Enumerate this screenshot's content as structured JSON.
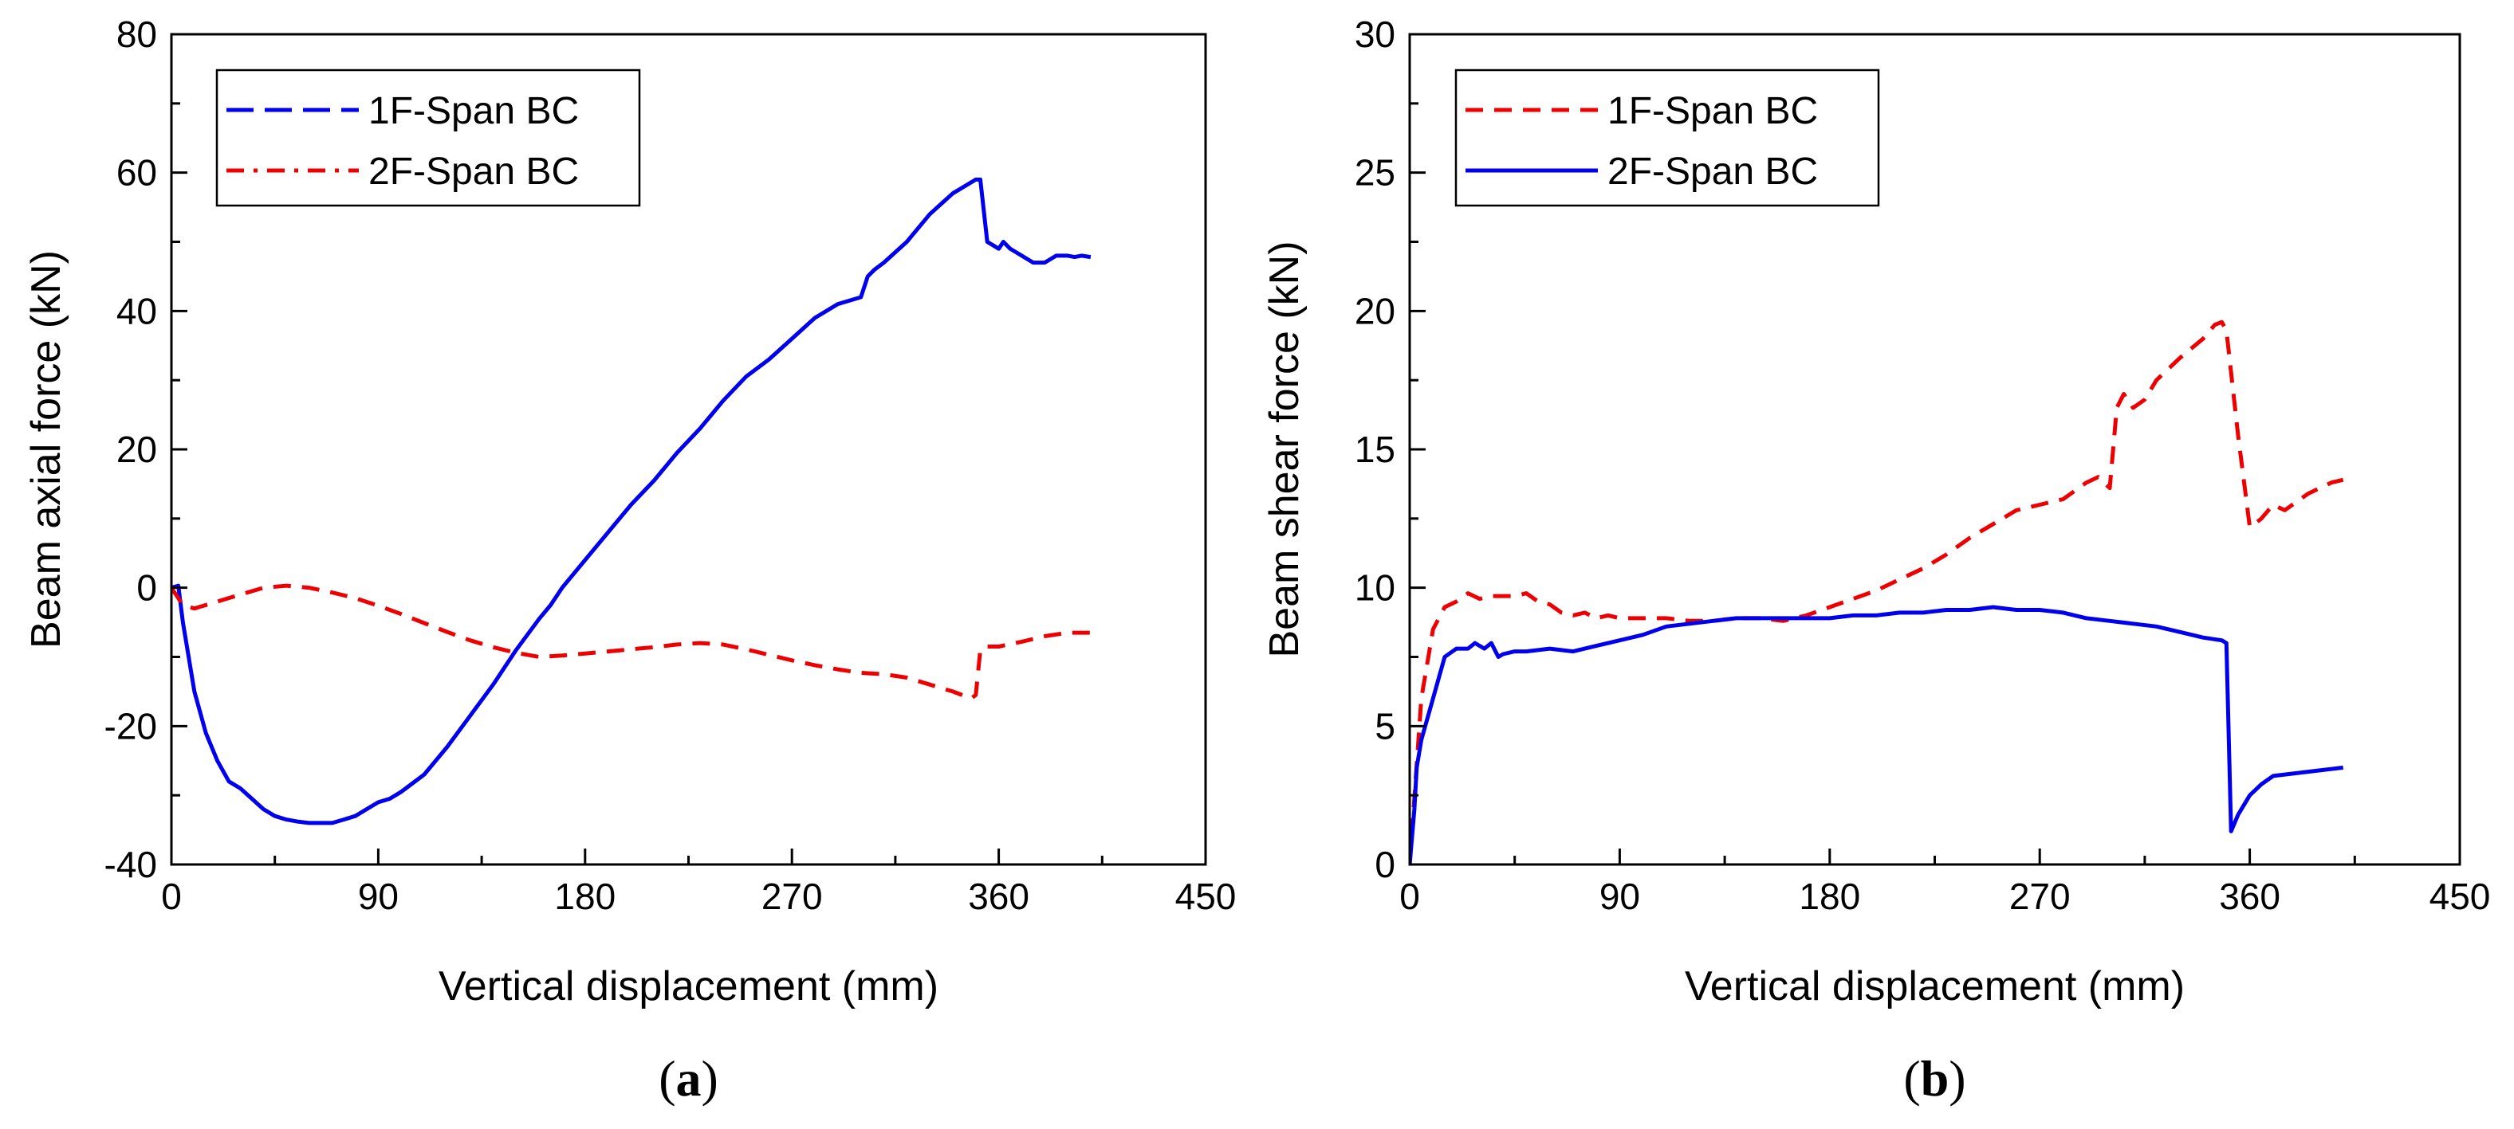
{
  "chart_data": [
    {
      "type": "line",
      "panel_label": "a",
      "xlabel": "Vertical displacement (mm)",
      "ylabel": "Beam axial force (kN)",
      "xlim": [
        0,
        450
      ],
      "ylim": [
        -40,
        80
      ],
      "xticks": [
        0,
        90,
        180,
        270,
        360,
        450
      ],
      "yticks": [
        -40,
        -20,
        0,
        20,
        40,
        60,
        80
      ],
      "legend_position": "top-left",
      "series": [
        {
          "name": "1F-Span BC",
          "color": "#0000ee",
          "style": "long-dash-legend-solid-curve",
          "x": [
            0,
            3,
            5,
            10,
            15,
            20,
            25,
            30,
            35,
            40,
            45,
            50,
            55,
            60,
            65,
            70,
            75,
            80,
            85,
            90,
            95,
            100,
            110,
            120,
            130,
            140,
            150,
            160,
            165,
            170,
            180,
            190,
            200,
            210,
            220,
            230,
            240,
            250,
            260,
            270,
            280,
            290,
            300,
            303,
            306,
            310,
            320,
            330,
            340,
            350,
            352,
            355,
            360,
            362,
            365,
            370,
            375,
            380,
            385,
            390,
            393,
            396,
            400
          ],
          "y": [
            0,
            0.3,
            -5,
            -15,
            -21,
            -25,
            -28,
            -29,
            -30.5,
            -32,
            -33,
            -33.5,
            -33.8,
            -34,
            -34,
            -34,
            -33.5,
            -33,
            -32,
            -31,
            -30.5,
            -29.5,
            -27,
            -23,
            -18.5,
            -14,
            -9,
            -4.5,
            -2.5,
            0,
            4,
            8,
            12,
            15.5,
            19.5,
            23,
            27,
            30.5,
            33,
            36,
            39,
            41,
            42,
            45,
            46,
            47,
            50,
            54,
            57,
            59,
            59,
            50,
            49,
            50,
            49,
            48,
            47,
            47,
            48,
            48,
            47.8,
            48,
            47.8
          ]
        },
        {
          "name": "2F-Span BC",
          "color": "#ee0000",
          "style": "dash-dot-legend-dashed-curve",
          "x": [
            0,
            5,
            10,
            20,
            30,
            40,
            50,
            60,
            70,
            80,
            90,
            100,
            110,
            120,
            130,
            140,
            150,
            160,
            170,
            180,
            190,
            200,
            210,
            220,
            230,
            240,
            250,
            260,
            270,
            280,
            290,
            300,
            310,
            320,
            330,
            340,
            348,
            350,
            352,
            355,
            360,
            370,
            380,
            390,
            400
          ],
          "y": [
            0,
            -2.5,
            -3,
            -2,
            -1,
            0,
            0.3,
            0,
            -0.7,
            -1.5,
            -2.6,
            -3.8,
            -5.1,
            -6.4,
            -7.6,
            -8.6,
            -9.4,
            -10,
            -9.8,
            -9.5,
            -9.2,
            -8.9,
            -8.6,
            -8.2,
            -8,
            -8.2,
            -8.9,
            -9.7,
            -10.5,
            -11.2,
            -11.8,
            -12.3,
            -12.5,
            -13,
            -14,
            -15,
            -16,
            -15.5,
            -9,
            -8.5,
            -8.5,
            -7.8,
            -7,
            -6.5,
            -6.5
          ]
        }
      ]
    },
    {
      "type": "line",
      "panel_label": "b",
      "xlabel": "Vertical displacement (mm)",
      "ylabel": "Beam shear force (kN)",
      "xlim": [
        0,
        450
      ],
      "ylim": [
        0,
        30
      ],
      "xticks": [
        0,
        90,
        180,
        270,
        360,
        450
      ],
      "yticks": [
        0,
        5,
        10,
        15,
        20,
        25,
        30
      ],
      "legend_position": "top-left",
      "series": [
        {
          "name": "1F-Span BC",
          "color": "#ee0000",
          "style": "dashed",
          "x": [
            0,
            5,
            10,
            15,
            20,
            25,
            30,
            35,
            40,
            45,
            50,
            55,
            60,
            65,
            70,
            75,
            80,
            85,
            90,
            100,
            110,
            120,
            130,
            140,
            150,
            160,
            170,
            180,
            190,
            200,
            210,
            220,
            230,
            240,
            250,
            260,
            270,
            280,
            290,
            295,
            300,
            303,
            306,
            310,
            315,
            320,
            330,
            340,
            345,
            348,
            350,
            355,
            360,
            362,
            365,
            370,
            375,
            380,
            385,
            390,
            395,
            400
          ],
          "y": [
            0,
            6,
            8.5,
            9.3,
            9.5,
            9.8,
            9.6,
            9.7,
            9.7,
            9.7,
            9.8,
            9.5,
            9.4,
            9.1,
            9,
            9.1,
            8.9,
            9,
            8.9,
            8.9,
            8.9,
            8.8,
            8.8,
            8.9,
            8.9,
            8.8,
            9,
            9.3,
            9.6,
            9.9,
            10.3,
            10.7,
            11.2,
            11.8,
            12.3,
            12.8,
            13,
            13.2,
            13.8,
            14,
            13.6,
            16.5,
            17,
            16.5,
            16.8,
            17.5,
            18.3,
            19,
            19.5,
            19.6,
            19.3,
            15.5,
            12.2,
            12.3,
            12.5,
            13,
            12.8,
            13.1,
            13.4,
            13.6,
            13.8,
            13.9
          ]
        },
        {
          "name": "2F-Span BC",
          "color": "#0000ee",
          "style": "solid",
          "x": [
            0,
            2,
            3,
            5,
            10,
            15,
            20,
            25,
            28,
            32,
            35,
            38,
            40,
            45,
            50,
            60,
            70,
            80,
            90,
            100,
            110,
            120,
            130,
            140,
            150,
            160,
            170,
            180,
            190,
            200,
            210,
            220,
            230,
            240,
            250,
            260,
            270,
            280,
            290,
            300,
            310,
            320,
            330,
            340,
            348,
            350,
            352,
            355,
            360,
            365,
            370,
            380,
            390,
            400
          ],
          "y": [
            0,
            2,
            3.5,
            4.5,
            6,
            7.5,
            7.8,
            7.8,
            8,
            7.8,
            8,
            7.5,
            7.6,
            7.7,
            7.7,
            7.8,
            7.7,
            7.9,
            8.1,
            8.3,
            8.6,
            8.7,
            8.8,
            8.9,
            8.9,
            8.9,
            8.9,
            8.9,
            9,
            9,
            9.1,
            9.1,
            9.2,
            9.2,
            9.3,
            9.2,
            9.2,
            9.1,
            8.9,
            8.8,
            8.7,
            8.6,
            8.4,
            8.2,
            8.1,
            8,
            1.2,
            1.8,
            2.5,
            2.9,
            3.2,
            3.3,
            3.4,
            3.5
          ]
        }
      ]
    }
  ]
}
